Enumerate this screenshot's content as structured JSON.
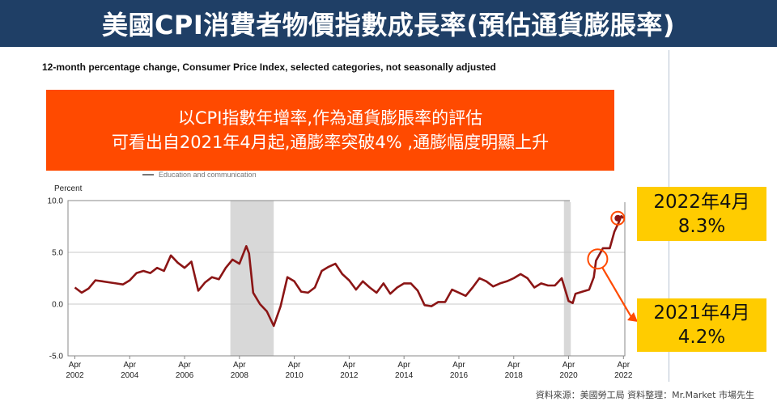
{
  "header": {
    "title": "美國CPI消費者物價指數成長率(預估通貨膨脹率)"
  },
  "subtitle": "12-month percentage change, Consumer Price Index, selected categories, not seasonally adjusted",
  "legend_peek": "Education and communication",
  "callout": {
    "line1": "以CPI指數年增率,作為通貨膨脹率的評估",
    "line2": "可看出自2021年4月起,通膨率突破4% ,通膨幅度明顯上升"
  },
  "annotations": [
    {
      "date_label": "2022年4月",
      "value_label": "8.3%"
    },
    {
      "date_label": "2021年4月",
      "value_label": "4.2%"
    }
  ],
  "footer": "資料來源：美國勞工局  資料整理：Mr.Market  市場先生",
  "colors": {
    "title_bg": "#1f3f66",
    "callout": "#ff4a00",
    "highlight": "#ffcc00",
    "line": "#8b1515",
    "recession": "#d8d8d8"
  },
  "chart_data": {
    "type": "line",
    "ylabel": "Percent",
    "ylim": [
      -5.0,
      10.0
    ],
    "y_ticks": [
      "10.0",
      "5.0",
      "0.0",
      "-5.0"
    ],
    "y_tick_values": [
      10,
      5,
      0,
      -5
    ],
    "x_tick_labels": [
      {
        "month": "Apr",
        "year": "2002",
        "t": 2002.25
      },
      {
        "month": "Apr",
        "year": "2004",
        "t": 2004.25
      },
      {
        "month": "Apr",
        "year": "2006",
        "t": 2006.25
      },
      {
        "month": "Apr",
        "year": "2008",
        "t": 2008.25
      },
      {
        "month": "Apr",
        "year": "2010",
        "t": 2010.25
      },
      {
        "month": "Apr",
        "year": "2012",
        "t": 2012.25
      },
      {
        "month": "Apr",
        "year": "2014",
        "t": 2014.25
      },
      {
        "month": "Apr",
        "year": "2016",
        "t": 2016.25
      },
      {
        "month": "Apr",
        "year": "2018",
        "t": 2018.25
      },
      {
        "month": "Apr",
        "year": "2020",
        "t": 2020.25
      },
      {
        "month": "Apr",
        "year": "2022",
        "t": 2022.25
      }
    ],
    "xlim": [
      2002.0,
      2022.3
    ],
    "recession_bands": [
      [
        2007.92,
        2009.5
      ],
      [
        2020.08,
        2020.33
      ]
    ],
    "series": [
      {
        "name": "",
        "points": [
          [
            2002.25,
            1.6
          ],
          [
            2002.5,
            1.1
          ],
          [
            2002.75,
            1.5
          ],
          [
            2003.0,
            2.3
          ],
          [
            2003.25,
            2.2
          ],
          [
            2003.5,
            2.1
          ],
          [
            2003.75,
            2.0
          ],
          [
            2004.0,
            1.9
          ],
          [
            2004.25,
            2.3
          ],
          [
            2004.5,
            3.0
          ],
          [
            2004.75,
            3.2
          ],
          [
            2005.0,
            3.0
          ],
          [
            2005.25,
            3.5
          ],
          [
            2005.5,
            3.2
          ],
          [
            2005.75,
            4.7
          ],
          [
            2006.0,
            4.0
          ],
          [
            2006.25,
            3.5
          ],
          [
            2006.5,
            4.1
          ],
          [
            2006.75,
            1.3
          ],
          [
            2007.0,
            2.1
          ],
          [
            2007.25,
            2.6
          ],
          [
            2007.5,
            2.4
          ],
          [
            2007.75,
            3.5
          ],
          [
            2008.0,
            4.3
          ],
          [
            2008.25,
            3.9
          ],
          [
            2008.5,
            5.6
          ],
          [
            2008.6,
            4.9
          ],
          [
            2008.75,
            1.1
          ],
          [
            2009.0,
            0.0
          ],
          [
            2009.25,
            -0.7
          ],
          [
            2009.5,
            -2.1
          ],
          [
            2009.75,
            -0.2
          ],
          [
            2010.0,
            2.6
          ],
          [
            2010.25,
            2.2
          ],
          [
            2010.5,
            1.2
          ],
          [
            2010.75,
            1.1
          ],
          [
            2011.0,
            1.6
          ],
          [
            2011.25,
            3.2
          ],
          [
            2011.5,
            3.6
          ],
          [
            2011.75,
            3.9
          ],
          [
            2012.0,
            2.9
          ],
          [
            2012.25,
            2.3
          ],
          [
            2012.5,
            1.4
          ],
          [
            2012.75,
            2.2
          ],
          [
            2013.0,
            1.6
          ],
          [
            2013.25,
            1.1
          ],
          [
            2013.5,
            2.0
          ],
          [
            2013.75,
            1.0
          ],
          [
            2014.0,
            1.6
          ],
          [
            2014.25,
            2.0
          ],
          [
            2014.5,
            2.0
          ],
          [
            2014.75,
            1.3
          ],
          [
            2015.0,
            -0.1
          ],
          [
            2015.25,
            -0.2
          ],
          [
            2015.5,
            0.2
          ],
          [
            2015.75,
            0.2
          ],
          [
            2016.0,
            1.4
          ],
          [
            2016.25,
            1.1
          ],
          [
            2016.5,
            0.8
          ],
          [
            2016.75,
            1.6
          ],
          [
            2017.0,
            2.5
          ],
          [
            2017.25,
            2.2
          ],
          [
            2017.5,
            1.7
          ],
          [
            2017.75,
            2.0
          ],
          [
            2018.0,
            2.2
          ],
          [
            2018.25,
            2.5
          ],
          [
            2018.5,
            2.9
          ],
          [
            2018.75,
            2.5
          ],
          [
            2019.0,
            1.6
          ],
          [
            2019.25,
            2.0
          ],
          [
            2019.5,
            1.8
          ],
          [
            2019.75,
            1.8
          ],
          [
            2020.0,
            2.5
          ],
          [
            2020.25,
            0.3
          ],
          [
            2020.4,
            0.1
          ],
          [
            2020.5,
            1.0
          ],
          [
            2020.75,
            1.2
          ],
          [
            2021.0,
            1.4
          ],
          [
            2021.17,
            2.6
          ],
          [
            2021.25,
            4.2
          ],
          [
            2021.5,
            5.4
          ],
          [
            2021.75,
            5.4
          ],
          [
            2021.92,
            7.0
          ],
          [
            2022.08,
            7.9
          ],
          [
            2022.17,
            8.5
          ],
          [
            2022.25,
            8.3
          ]
        ]
      }
    ]
  }
}
